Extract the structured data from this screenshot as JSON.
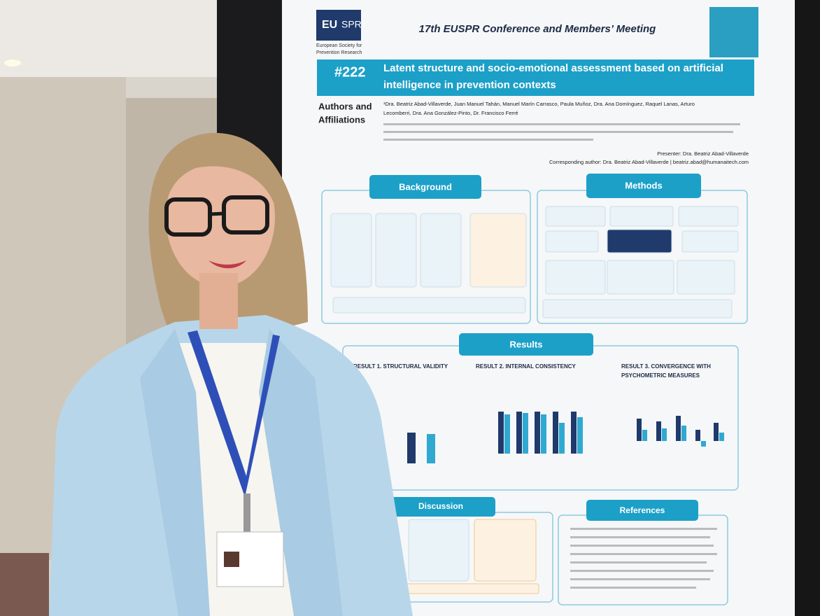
{
  "logo": {
    "mark_left": "EU",
    "mark_right": "SPR",
    "tagline_line1": "European Society for",
    "tagline_line2": "Prevention Research"
  },
  "header": {
    "conference": "17th EUSPR Conference and Members’ Meeting",
    "number": "#222",
    "title_line1": "Latent structure and socio-emotional assessment based on artificial",
    "title_line2": "intelligence in prevention contexts"
  },
  "authors": {
    "label_line1": "Authors and",
    "label_line2": "Affiliations",
    "names_line1": "¹Dra. Beatriz Abad-Villaverde, Juan Manuel Tahán, Manuel Marín Carrasco, Paula Muñoz, Dra. Ana Domínguez, Raquel Lanas, Arturo",
    "names_line2": "Lecomberri, Dra. Ana González-Pinto, Dr. Francisco Ferré",
    "presenter": "Presenter: Dra. Beatriz Abad-Villaverde",
    "corresponding": "Corresponding author: Dra. Beatriz Abad-Villaverde | beatriz.abad@humanaitech.com"
  },
  "sections": {
    "background": "Background",
    "methods": "Methods",
    "results": "Results",
    "discussion": "Discussion",
    "references": "References"
  },
  "results": [
    {
      "heading": "RESULT 1. STRUCTURAL VALIDITY"
    },
    {
      "heading": "RESULT 2. INTERNAL CONSISTENCY"
    },
    {
      "heading": "RESULT 3. CONVERGENCE WITH",
      "heading_line2": "PSYCHOMETRIC MEASURES"
    }
  ]
}
